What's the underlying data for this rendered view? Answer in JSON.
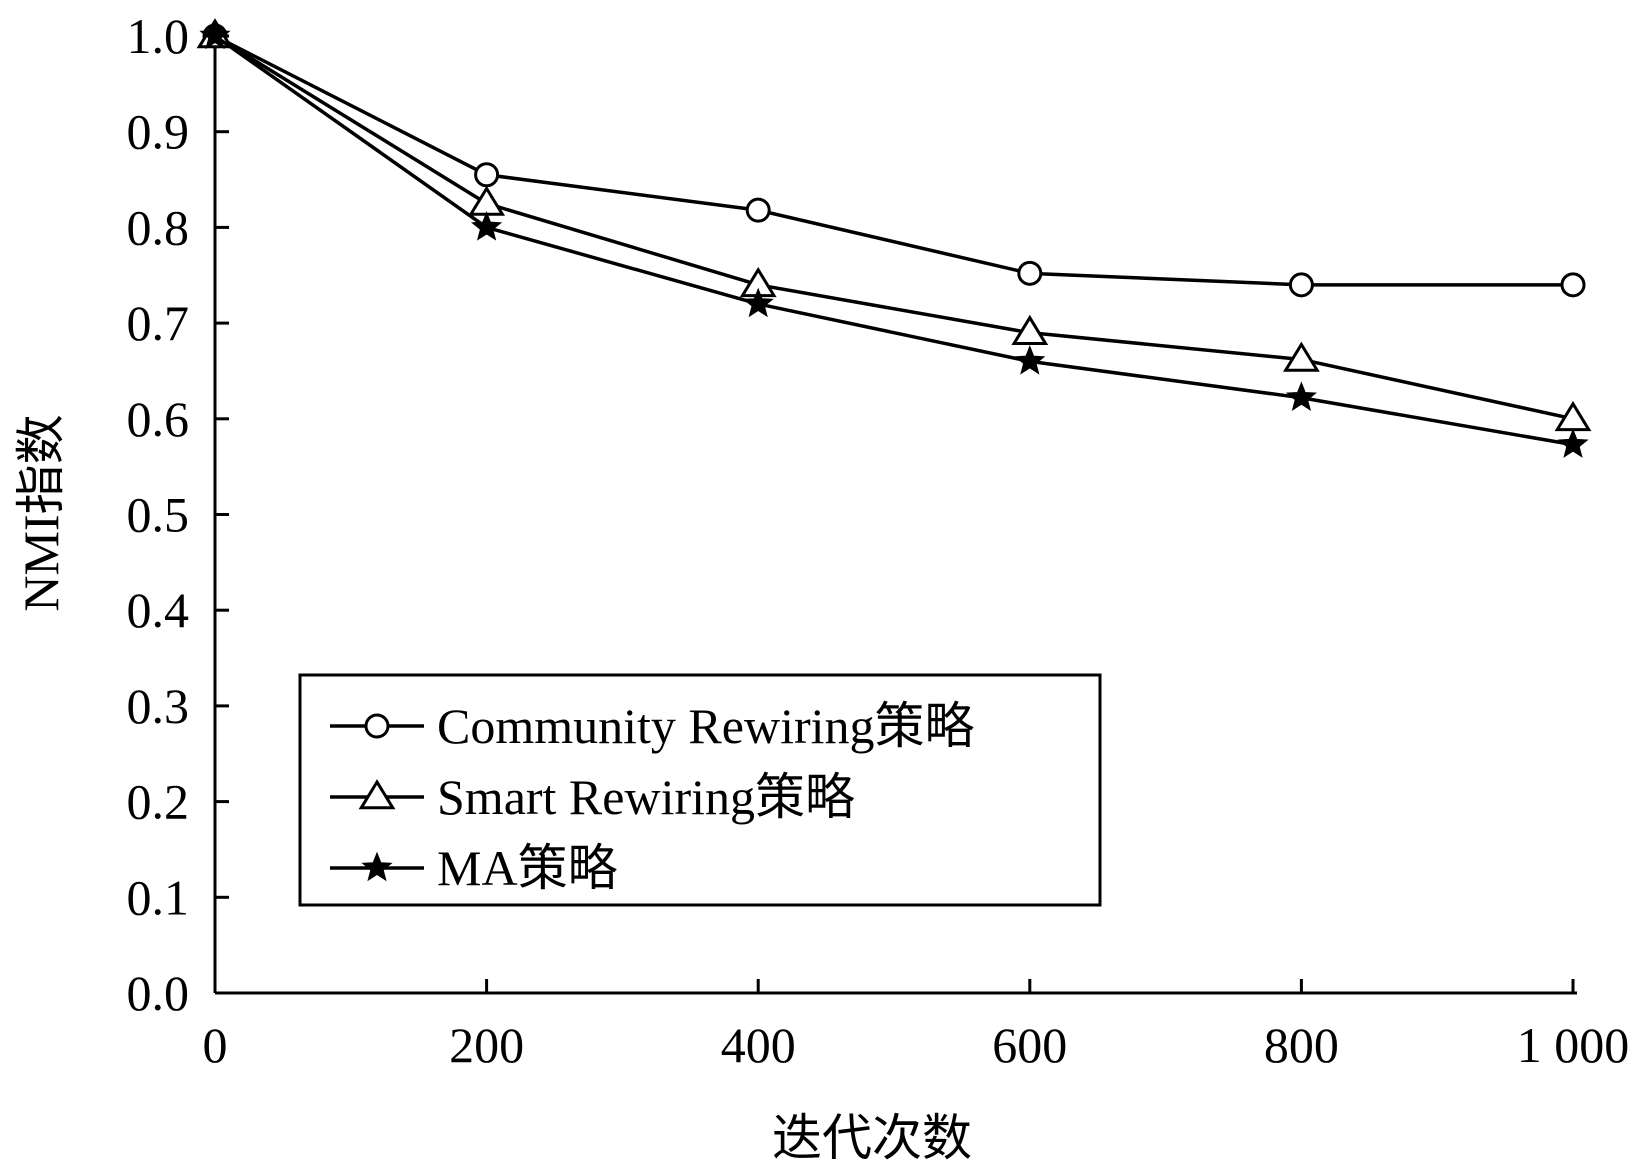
{
  "chart_data": {
    "type": "line",
    "title": "",
    "xlabel": "迭代次数",
    "ylabel": "NMI指数",
    "x": [
      0,
      200,
      400,
      600,
      800,
      1000
    ],
    "x_tick_labels": [
      "0",
      "200",
      "400",
      "600",
      "800",
      "1 000"
    ],
    "y_ticks": [
      0.0,
      0.1,
      0.2,
      0.3,
      0.4,
      0.5,
      0.6,
      0.7,
      0.8,
      0.9,
      1.0
    ],
    "y_tick_labels": [
      "0.0",
      "0.1",
      "0.2",
      "0.3",
      "0.4",
      "0.5",
      "0.6",
      "0.7",
      "0.8",
      "0.9",
      "1.0"
    ],
    "xlim": [
      0,
      1000
    ],
    "ylim": [
      0,
      1.0
    ],
    "grid": false,
    "legend_position": "lower-left",
    "series": [
      {
        "name": "Community Rewiring策略",
        "marker": "circle",
        "values": [
          1.0,
          0.855,
          0.818,
          0.752,
          0.74,
          0.74
        ]
      },
      {
        "name": "Smart Rewiring策略",
        "marker": "triangle",
        "values": [
          1.0,
          0.825,
          0.74,
          0.69,
          0.662,
          0.6
        ]
      },
      {
        "name": "MA策略",
        "marker": "star",
        "values": [
          1.0,
          0.8,
          0.72,
          0.66,
          0.622,
          0.573
        ]
      }
    ],
    "colors": {
      "line": "#000000",
      "background": "#ffffff"
    }
  }
}
